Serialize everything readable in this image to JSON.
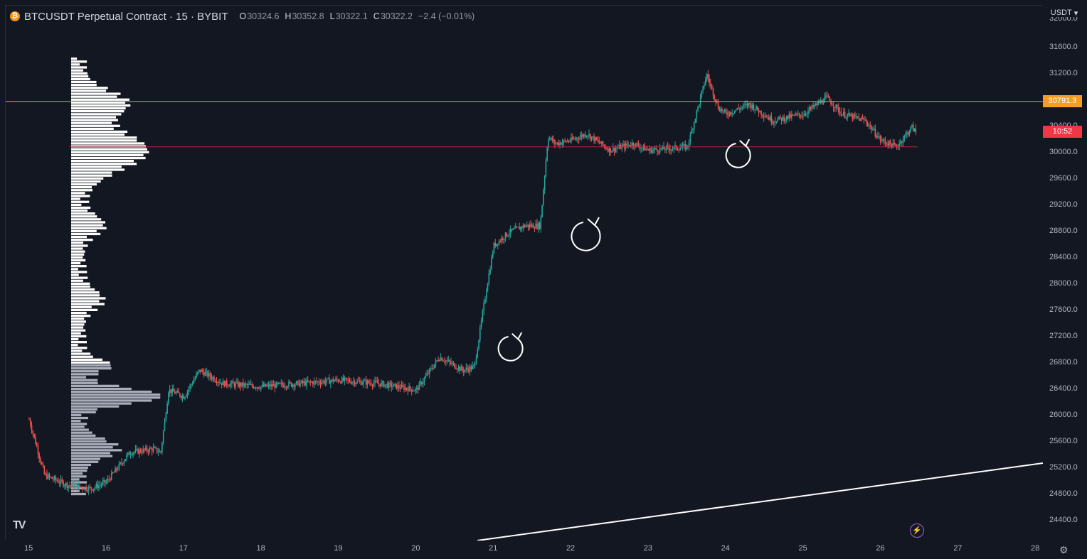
{
  "header": {
    "coin_glyph": "₿",
    "symbol_title": "BTCUSDT Perpetual Contract · 15 · BYBIT",
    "ohlc": [
      {
        "key": "O",
        "value": "30324.6"
      },
      {
        "key": "H",
        "value": "30352.8"
      },
      {
        "key": "L",
        "value": "30322.1"
      },
      {
        "key": "C",
        "value": "30322.2"
      }
    ],
    "change": "−2.4 (−0.01%)"
  },
  "currency_selector": {
    "label": "USDT",
    "chevron": "▾"
  },
  "price_axis": {
    "top_label_partial": "32000.0",
    "labels": [
      "31600.0",
      "31200.0",
      "30800.0",
      "30400.0",
      "30000.0",
      "29600.0",
      "29200.0",
      "28800.0",
      "28400.0",
      "28000.0",
      "27600.0",
      "27200.0",
      "26800.0",
      "26400.0",
      "26000.0",
      "25600.0",
      "25200.0",
      "24800.0",
      "24400.0"
    ]
  },
  "time_axis": {
    "labels": [
      "15",
      "16",
      "17",
      "18",
      "19",
      "20",
      "21",
      "22",
      "23",
      "24",
      "25",
      "26",
      "27",
      "28"
    ]
  },
  "price_tags": {
    "level_label": "30791.3",
    "countdown_label": "10:52",
    "level_color": "#f59d23",
    "countdown_color": "#f23645"
  },
  "colors": {
    "background": "#131722",
    "up": "#26a69a",
    "down": "#ef5350",
    "volume_profile_upper": "#ffffff",
    "volume_profile_lower": "#a9adb9",
    "support_line": "#b22833",
    "resistance_line": "#f59d23",
    "trend_line": "#ffffff"
  },
  "chart_data": {
    "type": "candlestick",
    "series": [
      {
        "name": "BTCUSDT",
        "x": [
          "15",
          "15.2",
          "15.5",
          "15.8",
          "16",
          "16.3",
          "16.6",
          "16.7",
          "16.8",
          "17",
          "17.2",
          "17.5",
          "18",
          "18.5",
          "19",
          "19.5",
          "20",
          "20.3",
          "20.6",
          "20.75",
          "20.9",
          "21",
          "21.2",
          "21.4",
          "21.6",
          "21.7",
          "21.8",
          "22",
          "22.2",
          "22.5",
          "22.8",
          "23",
          "23.5",
          "23.75",
          "23.9",
          "24",
          "24.3",
          "24.6",
          "25",
          "25.3",
          "25.5",
          "25.8",
          "26",
          "26.2",
          "26.4",
          "26.45"
        ],
        "values": [
          25950,
          25100,
          24950,
          24900,
          25000,
          25450,
          25500,
          25450,
          26400,
          26300,
          26700,
          26500,
          26450,
          26500,
          26550,
          26500,
          26400,
          26900,
          26700,
          26750,
          27900,
          28600,
          28800,
          28900,
          28900,
          30250,
          30150,
          30200,
          30300,
          30050,
          30150,
          30050,
          30100,
          31200,
          30700,
          30600,
          30750,
          30500,
          30600,
          30850,
          30600,
          30500,
          30200,
          30100,
          30400,
          30320
        ]
      }
    ],
    "y_range": [
      24200,
      32000
    ],
    "x_range": [
      "15",
      "28"
    ],
    "horizontal_levels": [
      30791.3,
      30100
    ],
    "annotations": [
      "hand-drawn circle arrows near 21, 22.2 and 24.2"
    ]
  }
}
